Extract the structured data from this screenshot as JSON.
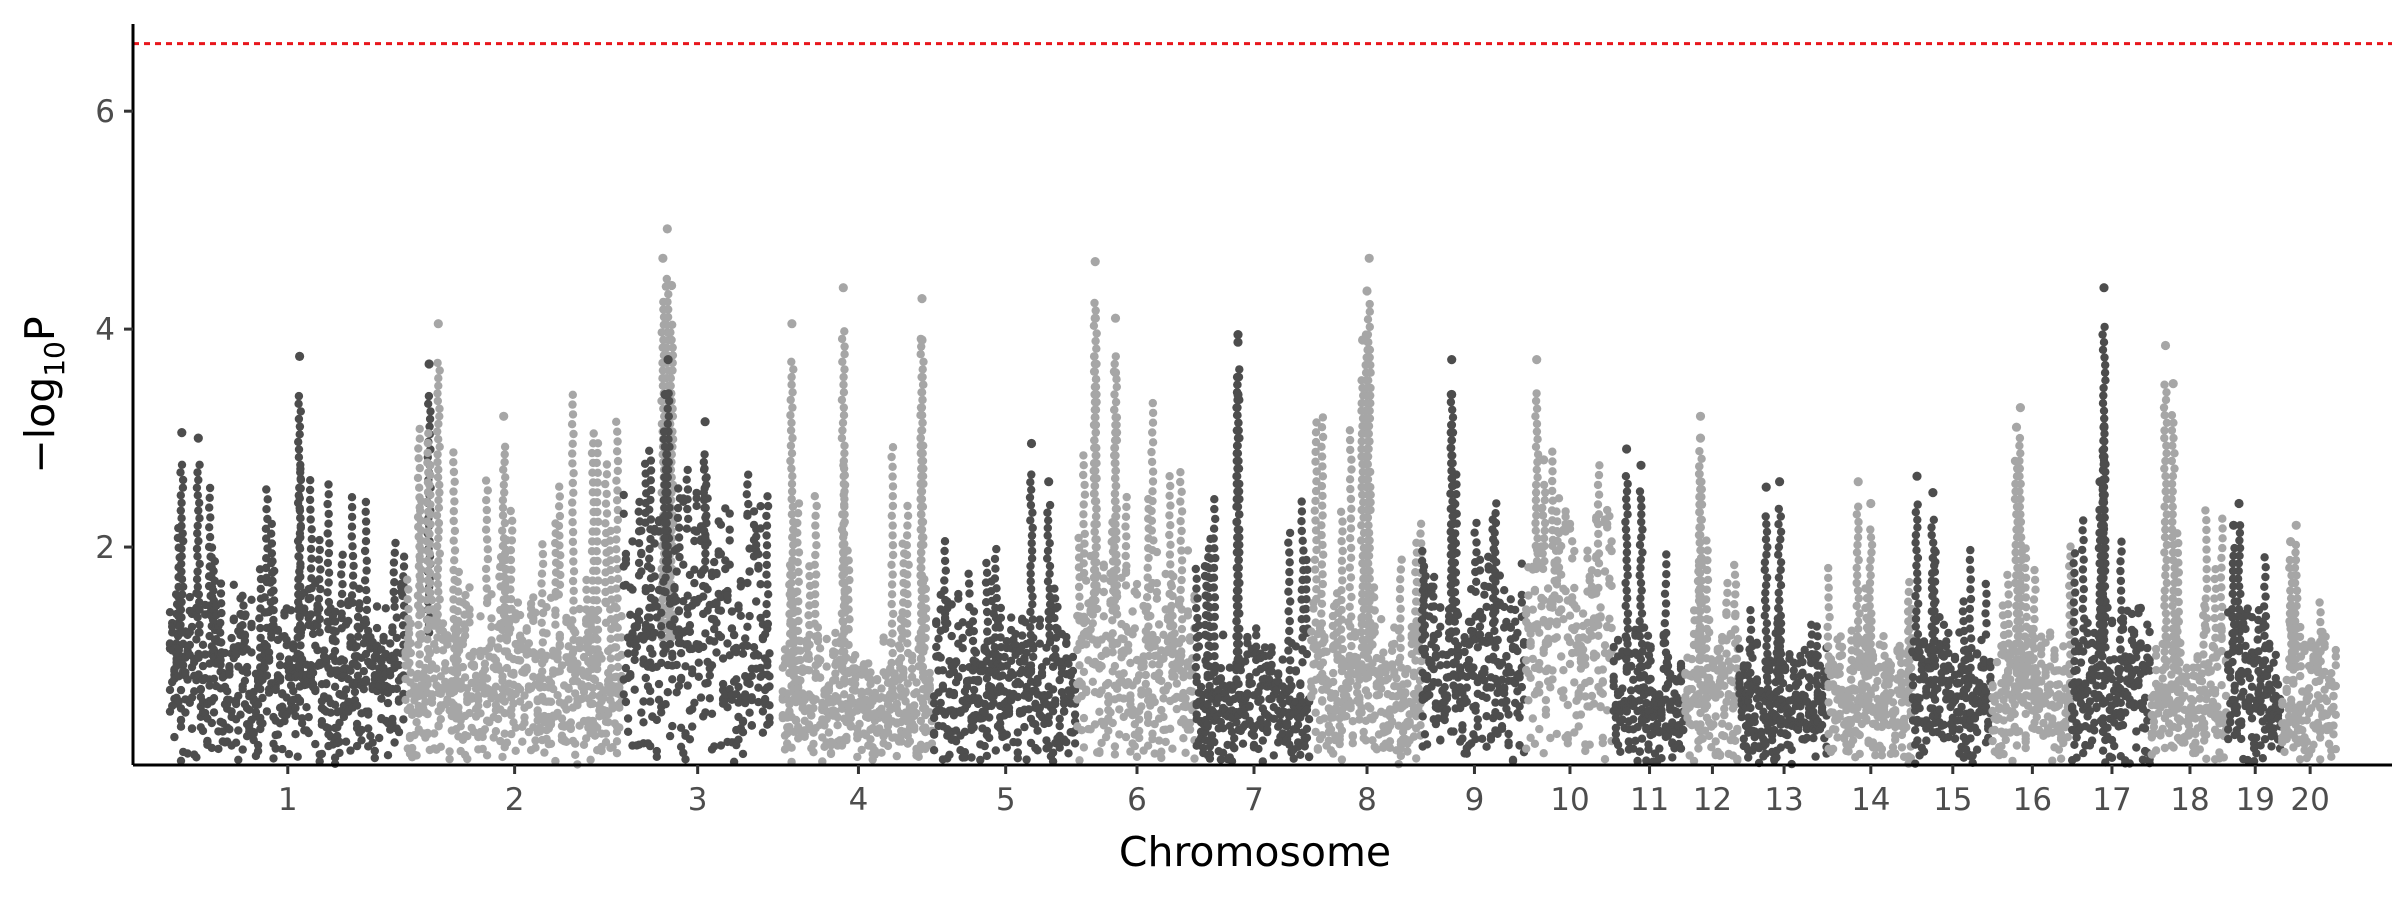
{
  "chart_data": {
    "type": "scatter",
    "subtype": "manhattan",
    "title": "",
    "xlabel": "Chromosome",
    "ylabel_parts": {
      "prefix": "−log",
      "subscript": "10",
      "suffix": "P"
    },
    "ylim": [
      0,
      6.8
    ],
    "yticks": [
      2,
      4,
      6
    ],
    "threshold": {
      "value": 6.62,
      "color": "#e8161c",
      "style": "dotted"
    },
    "grid": false,
    "legend": "none",
    "colors": {
      "odd": "#4d4d4d",
      "even": "#a6a6a6"
    },
    "chromosomes": [
      {
        "label": "1",
        "start": 0,
        "end": 1.48,
        "base": 1.35,
        "max": 3.75,
        "peaks": [
          [
            0.05,
            3.05
          ],
          [
            0.12,
            3.0
          ],
          [
            0.55,
            3.75
          ],
          [
            1.1,
            3.68
          ]
        ]
      },
      {
        "label": "2",
        "start": 1.48,
        "end": 2.85,
        "base": 1.3,
        "max": 4.9,
        "peaks": [
          [
            0.15,
            4.05
          ],
          [
            0.45,
            3.2
          ],
          [
            1.2,
            4.92
          ],
          [
            1.18,
            4.65
          ],
          [
            1.22,
            4.4
          ]
        ]
      },
      {
        "label": "3",
        "start": 2.85,
        "end": 3.78,
        "base": 2.0,
        "max": 3.7,
        "peaks": [
          [
            0.3,
            3.72
          ],
          [
            0.28,
            3.4
          ],
          [
            0.55,
            3.15
          ]
        ]
      },
      {
        "label": "4",
        "start": 3.85,
        "end": 4.8,
        "base": 1.0,
        "max": 4.4,
        "peaks": [
          [
            0.06,
            4.05
          ],
          [
            0.4,
            4.38
          ],
          [
            0.92,
            4.28
          ],
          [
            0.92,
            3.9
          ]
        ]
      },
      {
        "label": "5",
        "start": 4.8,
        "end": 5.7,
        "base": 1.25,
        "max": 3.0,
        "peaks": [
          [
            0.68,
            2.95
          ],
          [
            0.8,
            2.6
          ]
        ]
      },
      {
        "label": "6",
        "start": 5.7,
        "end": 6.45,
        "base": 1.6,
        "max": 4.6,
        "peaks": [
          [
            0.15,
            4.62
          ],
          [
            0.15,
            4.1
          ],
          [
            0.32,
            4.1
          ],
          [
            0.32,
            3.6
          ]
        ]
      },
      {
        "label": "7",
        "start": 6.45,
        "end": 7.17,
        "base": 1.0,
        "max": 3.95,
        "peaks": [
          [
            0.36,
            3.95
          ],
          [
            0.36,
            3.88
          ],
          [
            0.36,
            3.4
          ]
        ]
      },
      {
        "label": "8",
        "start": 7.17,
        "end": 7.87,
        "base": 1.2,
        "max": 4.65,
        "peaks": [
          [
            0.52,
            4.65
          ],
          [
            0.5,
            4.35
          ],
          [
            0.46,
            3.9
          ]
        ]
      },
      {
        "label": "9",
        "start": 7.87,
        "end": 8.52,
        "base": 1.6,
        "max": 3.7,
        "peaks": [
          [
            0.28,
            3.72
          ],
          [
            0.28,
            3.4
          ]
        ]
      },
      {
        "label": "10",
        "start": 8.52,
        "end": 9.07,
        "base": 2.0,
        "max": 3.72,
        "peaks": [
          [
            0.12,
            3.72
          ],
          [
            0.2,
            2.8
          ]
        ]
      },
      {
        "label": "11",
        "start": 9.07,
        "end": 9.52,
        "base": 1.0,
        "max": 2.9,
        "peaks": [
          [
            0.18,
            2.9
          ],
          [
            0.38,
            2.75
          ]
        ]
      },
      {
        "label": "12",
        "start": 9.52,
        "end": 9.86,
        "base": 1.1,
        "max": 3.2,
        "peaks": [
          [
            0.28,
            3.2
          ],
          [
            0.28,
            3.0
          ]
        ]
      },
      {
        "label": "13",
        "start": 9.86,
        "end": 10.42,
        "base": 0.9,
        "max": 2.6,
        "peaks": [
          [
            0.3,
            2.55
          ],
          [
            0.45,
            2.6
          ]
        ]
      },
      {
        "label": "14",
        "start": 10.42,
        "end": 10.95,
        "base": 1.0,
        "max": 2.6,
        "peaks": [
          [
            0.35,
            2.6
          ],
          [
            0.5,
            2.4
          ]
        ]
      },
      {
        "label": "15",
        "start": 10.95,
        "end": 11.45,
        "base": 1.1,
        "max": 2.65,
        "peaks": [
          [
            0.05,
            2.65
          ],
          [
            0.25,
            2.5
          ]
        ]
      },
      {
        "label": "16",
        "start": 11.45,
        "end": 11.95,
        "base": 1.0,
        "max": 3.3,
        "peaks": [
          [
            0.35,
            3.28
          ],
          [
            0.3,
            3.1
          ]
        ]
      },
      {
        "label": "17",
        "start": 11.95,
        "end": 12.45,
        "base": 1.2,
        "max": 4.38,
        "peaks": [
          [
            0.4,
            4.38
          ],
          [
            0.4,
            3.1
          ],
          [
            0.35,
            2.6
          ]
        ]
      },
      {
        "label": "18",
        "start": 12.45,
        "end": 12.93,
        "base": 1.0,
        "max": 3.85,
        "peaks": [
          [
            0.18,
            3.85
          ],
          [
            0.28,
            3.5
          ]
        ]
      },
      {
        "label": "19",
        "start": 12.93,
        "end": 13.27,
        "base": 1.2,
        "max": 2.45,
        "peaks": [
          [
            0.2,
            2.4
          ],
          [
            0.1,
            2.2
          ]
        ]
      },
      {
        "label": "20",
        "start": 13.27,
        "end": 13.62,
        "base": 1.0,
        "max": 2.2,
        "peaks": [
          [
            0.25,
            2.2
          ],
          [
            0.15,
            2.05
          ]
        ]
      }
    ]
  }
}
